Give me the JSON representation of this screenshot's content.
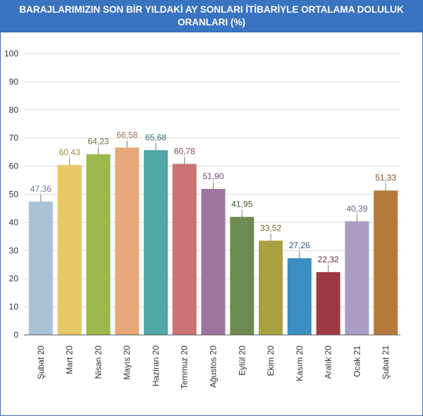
{
  "header": {
    "title_line1": "BARAJLARIMIZIN SON BİR YILDAKİ AY SONLARI İTİBARİYLE ORTALAMA DOLULUK",
    "title_line2": "ORANLARI (%)"
  },
  "colors": {
    "title_bg": "#3a73c0",
    "grid": "#d9d9d9",
    "axis": "#555555"
  },
  "chart_data": {
    "type": "bar",
    "title": "BARAJLARIMIZIN SON BİR YILDAKİ AY SONLARI İTİBARİYLE ORTALAMA DOLULUK ORANLARI (%)",
    "xlabel": "",
    "ylabel": "",
    "ylim": [
      0,
      100
    ],
    "yticks": [
      0,
      10,
      20,
      30,
      40,
      50,
      60,
      70,
      80,
      90,
      100
    ],
    "grid": true,
    "categories": [
      "Şubat 20",
      "Mart 20",
      "Nisan 20",
      "Mayıs 20",
      "Haziran 20",
      "Temmuz 20",
      "Ağustos 20",
      "Eylül 20",
      "Ekim 20",
      "Kasım 20",
      "Aralık 20",
      "Ocak 21",
      "Şubat 21"
    ],
    "values": [
      47.36,
      60.43,
      64.23,
      66.58,
      65.68,
      60.78,
      51.9,
      41.95,
      33.52,
      27.26,
      22.32,
      40.39,
      51.33
    ],
    "labels": [
      "47,36",
      "60,43",
      "64,23",
      "66,58",
      "65,68",
      "60,78",
      "51,90",
      "41,95",
      "33,52",
      "27,26",
      "22,32",
      "40,39",
      "51,33"
    ],
    "bar_colors": [
      "#a9c2d8",
      "#e8c766",
      "#9bb84a",
      "#e8a87a",
      "#52a6a7",
      "#cb7272",
      "#9e74a0",
      "#6d8b4e",
      "#a9a13f",
      "#3b8ec2",
      "#9b3a44",
      "#ab9cc4",
      "#b67a3e"
    ],
    "label_colors": [
      "#6a7a88",
      "#9a8a3a",
      "#5e7a2a",
      "#a07050",
      "#2e6e6f",
      "#8a4545",
      "#6a4a6e",
      "#3a5a2a",
      "#6a6420",
      "#2a5a80",
      "#6a2a30",
      "#6a6088",
      "#7a5028"
    ]
  }
}
